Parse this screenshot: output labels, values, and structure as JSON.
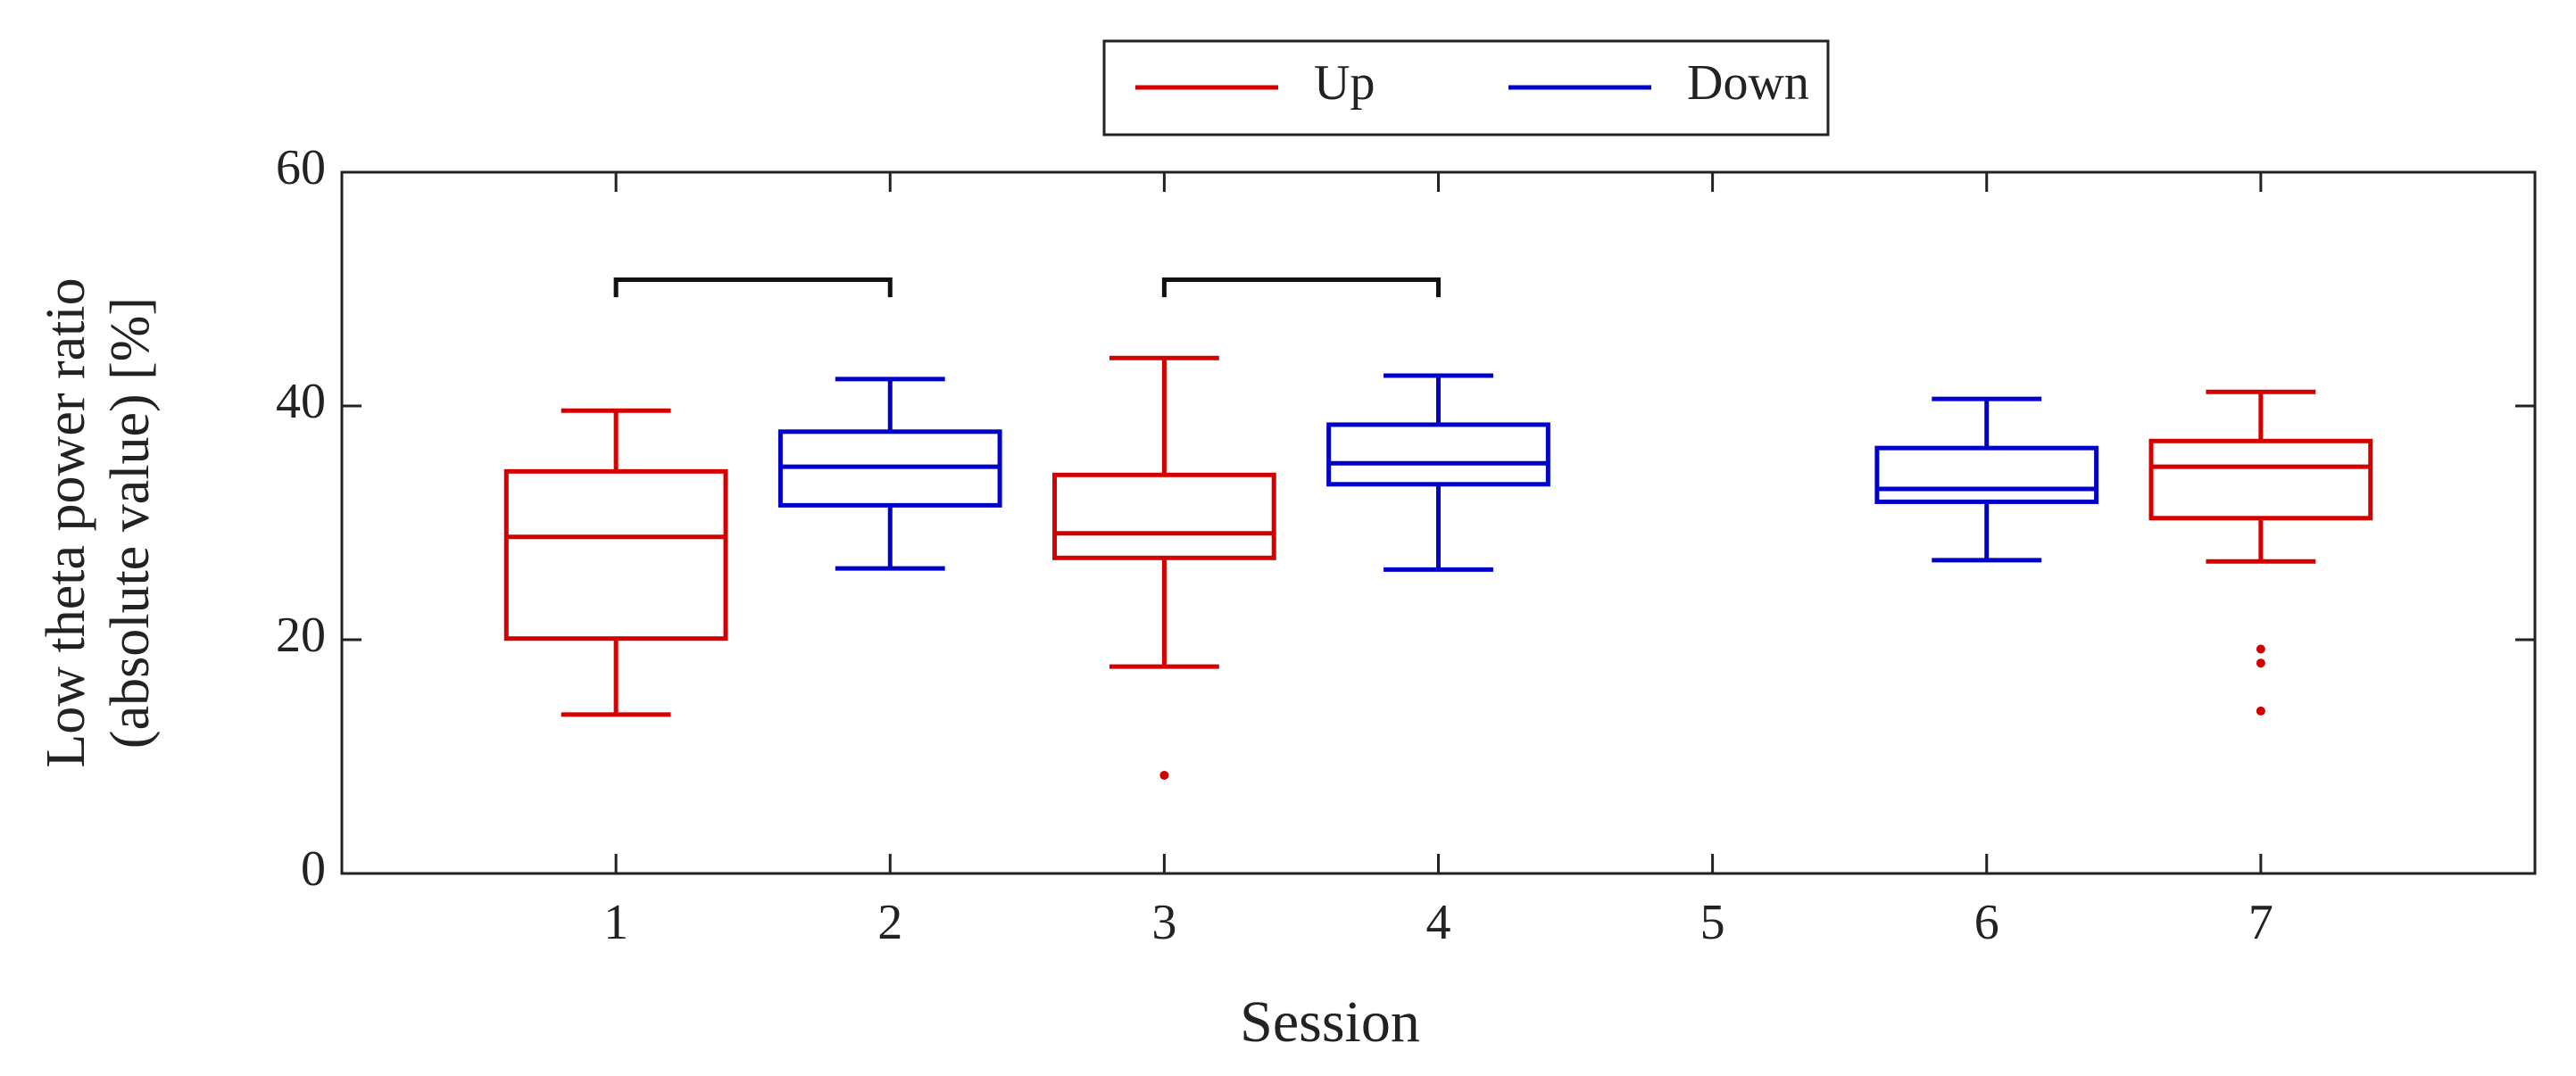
{
  "chart_data": {
    "type": "box",
    "y_label": [
      "Low theta power ratio",
      "(absolute value) [%]"
    ],
    "x_label": "Session",
    "xlim": [
      0,
      8
    ],
    "xticks": [
      1,
      2,
      3,
      4,
      5,
      6,
      7
    ],
    "ylim": [
      0,
      60
    ],
    "yticks": [
      0,
      20,
      40,
      60
    ],
    "legend": "top-outside",
    "series": [
      {
        "name": "Up",
        "color": "#d40000",
        "boxes": [
          {
            "x": 1,
            "whisker_low": 13.6,
            "q1": 20.1,
            "median": 28.8,
            "q3": 34.4,
            "whisker_high": 39.6,
            "outliers": []
          },
          {
            "x": 3,
            "whisker_low": 17.7,
            "q1": 27.0,
            "median": 29.1,
            "q3": 34.1,
            "whisker_high": 44.1,
            "outliers": [
              8.4
            ]
          },
          {
            "x": 7,
            "whisker_low": 26.7,
            "q1": 30.4,
            "median": 34.8,
            "q3": 37.0,
            "whisker_high": 41.2,
            "outliers": [
              19.2,
              18.0,
              13.9
            ]
          }
        ]
      },
      {
        "name": "Down",
        "color": "#0000c8",
        "boxes": [
          {
            "x": 2,
            "whisker_low": 26.1,
            "q1": 31.5,
            "median": 34.8,
            "q3": 37.8,
            "whisker_high": 42.3,
            "outliers": []
          },
          {
            "x": 4,
            "whisker_low": 26.0,
            "q1": 33.3,
            "median": 35.1,
            "q3": 38.4,
            "whisker_high": 42.6,
            "outliers": []
          },
          {
            "x": 6,
            "whisker_low": 26.8,
            "q1": 31.8,
            "median": 32.9,
            "q3": 36.4,
            "whisker_high": 40.6,
            "outliers": []
          }
        ]
      }
    ],
    "brackets": [
      {
        "from": 1,
        "to": 2,
        "y": 50.8
      },
      {
        "from": 3,
        "to": 4,
        "y": 50.8
      }
    ]
  }
}
